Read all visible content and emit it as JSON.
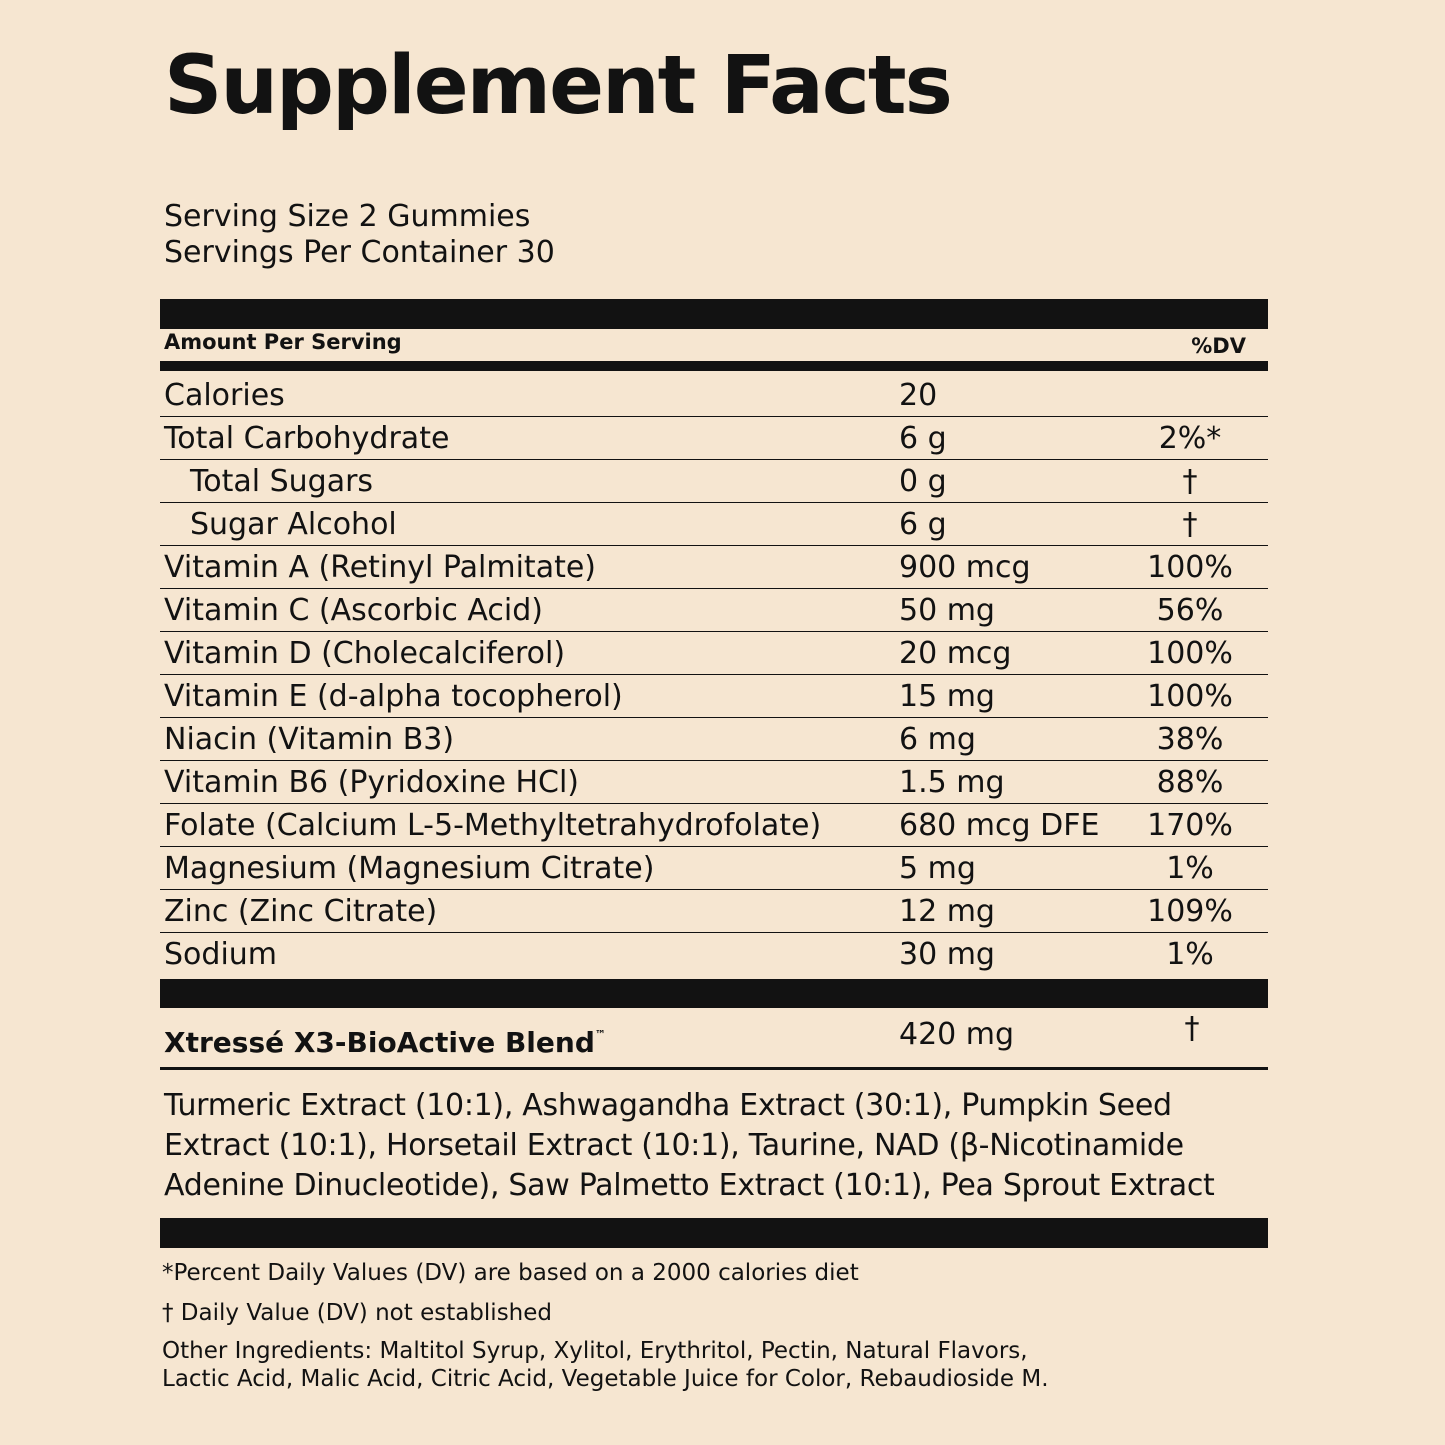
{
  "title": "Supplement Facts",
  "serving": {
    "size": "Serving Size 2 Gummies",
    "per_container": "Servings Per Container 30"
  },
  "header": {
    "amount_per_serving": "Amount Per Serving",
    "dv": "%DV"
  },
  "nutrients": [
    {
      "name": "Calories",
      "amount": "20",
      "dv": ""
    },
    {
      "name": "Total Carbohydrate",
      "amount": "6 g",
      "dv": "2%*"
    },
    {
      "name": "Total Sugars",
      "amount": "0 g",
      "dv": "†"
    },
    {
      "name": "Sugar Alcohol",
      "amount": "6 g",
      "dv": "†"
    },
    {
      "name": "Vitamin A (Retinyl Palmitate)",
      "amount": "900 mcg",
      "dv": "100%"
    },
    {
      "name": "Vitamin C (Ascorbic Acid)",
      "amount": "50 mg",
      "dv": "56%"
    },
    {
      "name": "Vitamin D (Cholecalciferol)",
      "amount": "20 mcg",
      "dv": "100%"
    },
    {
      "name": "Vitamin E (d-alpha tocopherol)",
      "amount": "15 mg",
      "dv": "100%"
    },
    {
      "name": "Niacin (Vitamin B3)",
      "amount": "6 mg",
      "dv": "38%"
    },
    {
      "name": "Vitamin B6 (Pyridoxine HCl)",
      "amount": "1.5 mg",
      "dv": "88%"
    },
    {
      "name": "Folate (Calcium L-5-Methyltetrahydrofolate)",
      "amount": "680 mcg DFE",
      "dv": "170%"
    },
    {
      "name": "Magnesium (Magnesium Citrate)",
      "amount": "5 mg",
      "dv": "1%"
    },
    {
      "name": "Zinc (Zinc Citrate)",
      "amount": "12 mg",
      "dv": "109%"
    },
    {
      "name": "Sodium",
      "amount": "30 mg",
      "dv": "1%"
    }
  ],
  "blend": {
    "name": "Xtressé X3-BioActive Blend",
    "trademark": "™",
    "amount": "420 mg",
    "dv": "†",
    "ingredients_lines": [
      "Turmeric Extract (10:1), Ashwagandha Extract (30:1), Pumpkin Seed",
      "Extract (10:1), Horsetail Extract (10:1), Taurine, NAD (β-Nicotinamide",
      "Adenine Dinucleotide), Saw Palmetto Extract (10:1), Pea Sprout Extract"
    ]
  },
  "footnotes": {
    "dv_basis": "*Percent Daily Values (DV) are based on a 2000 calories diet",
    "dv_not_established": "† Daily Value (DV) not established",
    "other_ingredients_lines": [
      "Other Ingredients: Maltitol Syrup, Xylitol, Erythritol, Pectin, Natural Flavors,",
      "Lactic Acid, Malic Acid, Citric Acid, Vegetable Juice for Color, Rebaudioside M."
    ]
  }
}
